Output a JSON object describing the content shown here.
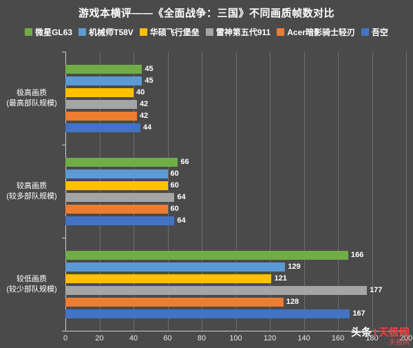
{
  "watermark": {
    "brand": "头条",
    "site": "天极网",
    "sub": "天极网"
  },
  "chart_data": {
    "type": "bar",
    "orientation": "horizontal",
    "title": "游戏本横评——《全面战争：三国》不同画质帧数对比",
    "background_color": "#4a4a4a",
    "grid": "vertical",
    "legend_position": "top",
    "categories": [
      {
        "line1": "极高画质",
        "line2": "(最高部队规模)"
      },
      {
        "line1": "较高画质",
        "line2": "(较多部队规模)"
      },
      {
        "line1": "较低画质",
        "line2": "(较少部队规模)"
      }
    ],
    "series": [
      {
        "name": "微星GL63",
        "color": "#70AD47",
        "values": [
          45,
          66,
          166
        ]
      },
      {
        "name": "机械师T58V",
        "color": "#5B9BD5",
        "values": [
          45,
          60,
          129
        ]
      },
      {
        "name": "华硕飞行堡垒",
        "color": "#FFC000",
        "values": [
          40,
          60,
          121
        ]
      },
      {
        "name": "雷神第五代911",
        "color": "#A5A5A5",
        "values": [
          42,
          64,
          177
        ]
      },
      {
        "name": "Acer暗影骑士轻刃",
        "color": "#ED7D31",
        "values": [
          42,
          60,
          128
        ]
      },
      {
        "name": "吾空",
        "color": "#4472C4",
        "values": [
          44,
          64,
          167
        ]
      }
    ],
    "x_axis": {
      "min": 0,
      "max": 200,
      "tick_step": 20,
      "ticks": [
        0,
        20,
        40,
        60,
        80,
        100,
        120,
        140,
        160,
        180,
        200
      ]
    },
    "value_labels": "shown at bar ends, white"
  }
}
